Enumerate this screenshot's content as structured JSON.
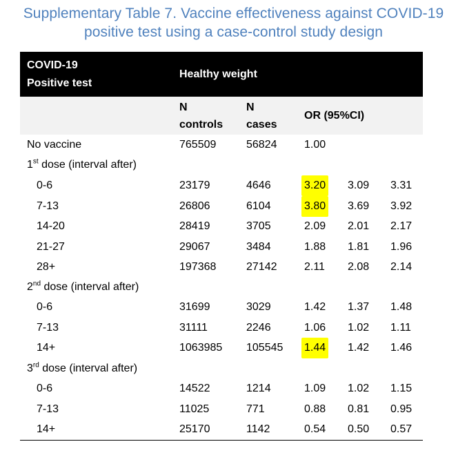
{
  "title": {
    "line1": "Supplementary Table 7. Vaccine effectiveness against COVID-19",
    "line2": "positive test using a case-control study design"
  },
  "header": {
    "col0_line1": "COVID-19",
    "col0_line2": "Positive test",
    "group": "Healthy weight",
    "n_controls_line1": "N",
    "n_controls_line2": "controls",
    "n_cases_line1": "N",
    "n_cases_line2": "cases",
    "or": "OR (95%CI)"
  },
  "sections": {
    "dose1": {
      "num": "1",
      "sup": "st",
      "rest": " dose (interval after)"
    },
    "dose2": {
      "num": "2",
      "sup": "nd",
      "rest": " dose (interval after)"
    },
    "dose3": {
      "num": "3",
      "sup": "rd",
      "rest": " dose (interval after)"
    }
  },
  "rows": {
    "no_vaccine": {
      "label": "No vaccine",
      "controls": "765509",
      "cases": "56824",
      "or": "1.00",
      "lo": "",
      "hi": ""
    },
    "d1_0_6": {
      "label": "0-6",
      "controls": "23179",
      "cases": "4646",
      "or": "3.20",
      "lo": "3.09",
      "hi": "3.31",
      "highlight": true
    },
    "d1_7_13": {
      "label": "7-13",
      "controls": "26806",
      "cases": "6104",
      "or": "3.80",
      "lo": "3.69",
      "hi": "3.92",
      "highlight": true
    },
    "d1_14_20": {
      "label": "14-20",
      "controls": "28419",
      "cases": "3705",
      "or": "2.09",
      "lo": "2.01",
      "hi": "2.17"
    },
    "d1_21_27": {
      "label": "21-27",
      "controls": "29067",
      "cases": "3484",
      "or": "1.88",
      "lo": "1.81",
      "hi": "1.96"
    },
    "d1_28p": {
      "label": "28+",
      "controls": "197368",
      "cases": "27142",
      "or": "2.11",
      "lo": "2.08",
      "hi": "2.14"
    },
    "d2_0_6": {
      "label": "0-6",
      "controls": "31699",
      "cases": "3029",
      "or": "1.42",
      "lo": "1.37",
      "hi": "1.48"
    },
    "d2_7_13": {
      "label": "7-13",
      "controls": "31111",
      "cases": "2246",
      "or": "1.06",
      "lo": "1.02",
      "hi": "1.11"
    },
    "d2_14p": {
      "label": "14+",
      "controls": "1063985",
      "cases": "105545",
      "or": "1.44",
      "lo": "1.42",
      "hi": "1.46",
      "highlight": true
    },
    "d3_0_6": {
      "label": "0-6",
      "controls": "14522",
      "cases": "1214",
      "or": "1.09",
      "lo": "1.02",
      "hi": "1.15"
    },
    "d3_7_13": {
      "label": "7-13",
      "controls": "11025",
      "cases": "771",
      "or": "0.88",
      "lo": "0.81",
      "hi": "0.95"
    },
    "d3_14p": {
      "label": "14+",
      "controls": "25170",
      "cases": "1142",
      "or": "0.54",
      "lo": "0.50",
      "hi": "0.57"
    }
  },
  "colors": {
    "title": "#4f81bd",
    "header_bg": "#000000",
    "subheader_bg": "#f2f2f2",
    "highlight": "#ffff00"
  }
}
